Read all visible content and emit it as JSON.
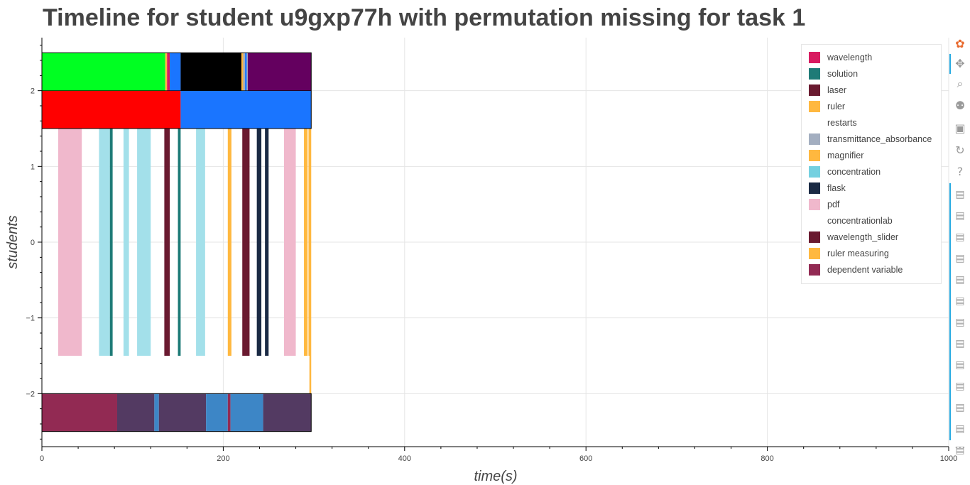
{
  "chart_data": {
    "type": "timeline",
    "title": "Timeline for student u9gxp77h with permutation missing for task 1",
    "xlabel": "time(s)",
    "ylabel": "students",
    "xlim": [
      0,
      1000
    ],
    "ylim": [
      -2.7,
      2.7
    ],
    "x_ticks": [
      0,
      200,
      400,
      600,
      800,
      1000
    ],
    "y_ticks": [
      -2,
      -1,
      0,
      1,
      2
    ],
    "y_tick_labels": [
      "−2",
      "−1",
      "0",
      "1",
      "2"
    ],
    "grid": true,
    "legend_position": "top-right",
    "legend": [
      {
        "label": "wavelength",
        "color": "#d81b60"
      },
      {
        "label": "solution",
        "color": "#1e7b77"
      },
      {
        "label": "laser",
        "color": "#6a1a30"
      },
      {
        "label": "ruler",
        "color": "#ffb83f"
      },
      {
        "label": "restarts",
        "color": "#ffffff"
      },
      {
        "label": "transmittance_absorbance",
        "color": "#a3aec0"
      },
      {
        "label": "magnifier",
        "color": "#ffb83f"
      },
      {
        "label": "concentration",
        "color": "#74d0e0"
      },
      {
        "label": "flask",
        "color": "#1a2a44"
      },
      {
        "label": "pdf",
        "color": "#f0b8cc"
      },
      {
        "label": "concentrationlab",
        "color": "#ffffff"
      },
      {
        "label": "wavelength_slider",
        "color": "#6a1a30"
      },
      {
        "label": "ruler measuring",
        "color": "#ffb83f"
      },
      {
        "label": "dependent variable",
        "color": "#922a53"
      }
    ],
    "rows": [
      {
        "y0": 2.0,
        "y1": 2.5,
        "bars": [
          {
            "start": 0,
            "end": 136,
            "color": "#00ff22"
          },
          {
            "start": 136,
            "end": 138,
            "color": "#ffb83f"
          },
          {
            "start": 138,
            "end": 141,
            "color": "#d81b60"
          },
          {
            "start": 141,
            "end": 153,
            "color": "#1a75ff"
          },
          {
            "start": 153,
            "end": 220,
            "color": "#000000"
          },
          {
            "start": 220,
            "end": 222,
            "color": "#ffb83f"
          },
          {
            "start": 222,
            "end": 224,
            "color": "#a3aec0"
          },
          {
            "start": 224,
            "end": 226,
            "color": "#1a75ff"
          },
          {
            "start": 226,
            "end": 227,
            "color": "#a3aec0"
          },
          {
            "start": 227,
            "end": 297,
            "color": "#64005f"
          }
        ]
      },
      {
        "y0": 1.5,
        "y1": 2.0,
        "bars": [
          {
            "start": 0,
            "end": 153,
            "color": "#ff0000"
          },
          {
            "start": 153,
            "end": 297,
            "color": "#1a75ff"
          }
        ]
      },
      {
        "y0": -1.5,
        "y1": 1.5,
        "bars": [
          {
            "start": 18,
            "end": 44,
            "color": "#f0b8cc"
          },
          {
            "start": 63,
            "end": 75,
            "color": "#a3e0ea"
          },
          {
            "start": 75,
            "end": 78,
            "color": "#1e7b77"
          },
          {
            "start": 90,
            "end": 96,
            "color": "#a3e0ea"
          },
          {
            "start": 105,
            "end": 120,
            "color": "#a3e0ea"
          },
          {
            "start": 135,
            "end": 141,
            "color": "#6a1a30"
          },
          {
            "start": 150,
            "end": 153,
            "color": "#1e7b77"
          },
          {
            "start": 170,
            "end": 180,
            "color": "#a3e0ea"
          },
          {
            "start": 205,
            "end": 209,
            "color": "#ffb83f"
          },
          {
            "start": 221,
            "end": 229,
            "color": "#6a1a30"
          },
          {
            "start": 237,
            "end": 242,
            "color": "#1a2a44"
          },
          {
            "start": 246,
            "end": 250,
            "color": "#1a2a44"
          },
          {
            "start": 267,
            "end": 280,
            "color": "#f0b8cc"
          },
          {
            "start": 289,
            "end": 293,
            "color": "#ffb83f"
          },
          {
            "start": 294,
            "end": 297,
            "color": "#ffb83f"
          }
        ]
      },
      {
        "y0": -2.0,
        "y1": -1.5,
        "bars": [
          {
            "start": 295,
            "end": 297,
            "color": "#ffb83f"
          }
        ]
      },
      {
        "y0": -2.5,
        "y1": -2.0,
        "bars": [
          {
            "start": 0,
            "end": 83,
            "color": "#922a53"
          },
          {
            "start": 83,
            "end": 124,
            "color": "#533a62"
          },
          {
            "start": 124,
            "end": 129,
            "color": "#3d86c6"
          },
          {
            "start": 129,
            "end": 181,
            "color": "#533a62"
          },
          {
            "start": 181,
            "end": 205,
            "color": "#3d86c6"
          },
          {
            "start": 205,
            "end": 208,
            "color": "#922a53"
          },
          {
            "start": 208,
            "end": 244,
            "color": "#3d86c6"
          },
          {
            "start": 244,
            "end": 297,
            "color": "#533a62"
          }
        ]
      }
    ]
  },
  "toolbar": {
    "tools": [
      {
        "name": "bokeh-logo-icon",
        "glyph": "✿",
        "color": "#e86a2e"
      },
      {
        "name": "pan-icon",
        "glyph": "✥",
        "color": "#9a9a9a"
      },
      {
        "name": "box-zoom-icon",
        "glyph": "⌕",
        "color": "#9a9a9a"
      },
      {
        "name": "wheel-zoom-icon",
        "glyph": "⚉",
        "color": "#9a9a9a"
      },
      {
        "name": "save-icon",
        "glyph": "▣",
        "color": "#9a9a9a"
      },
      {
        "name": "reset-icon",
        "glyph": "↻",
        "color": "#9a9a9a"
      },
      {
        "name": "help-icon",
        "glyph": "?",
        "color": "#9a9a9a"
      }
    ],
    "hover_tool_glyph": "▤",
    "hover_tool_count": 13,
    "more_glyph": "⋯"
  }
}
